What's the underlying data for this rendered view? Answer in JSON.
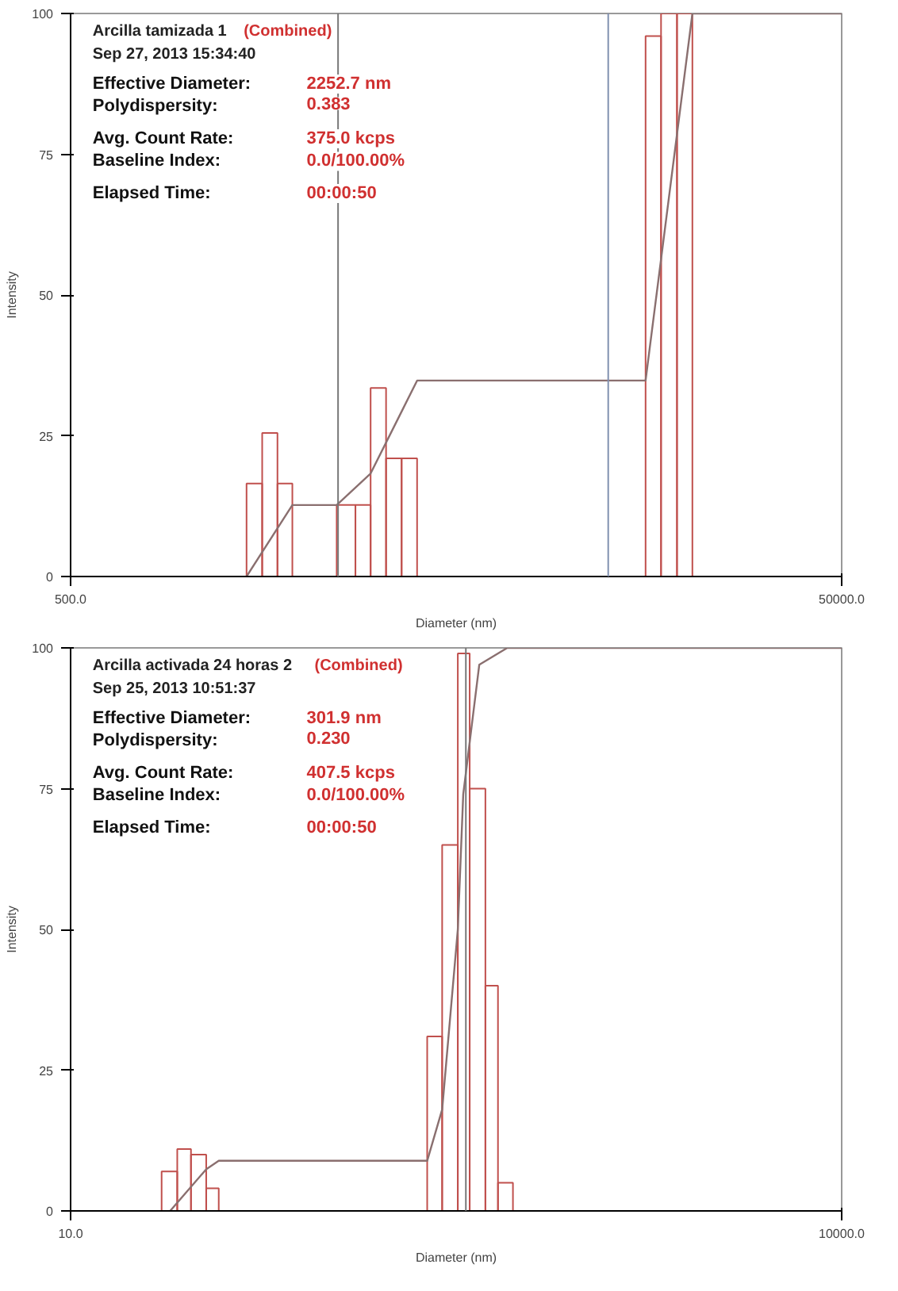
{
  "chart_data": [
    {
      "type": "histogram",
      "xlabel": "Diameter (nm)",
      "ylabel": "Intensity",
      "log": "x",
      "xlim": [
        500,
        50000
      ],
      "xticks": [
        {
          "value": 500,
          "label": "500.0"
        },
        {
          "value": 50000,
          "label": "50000.0"
        }
      ],
      "ylim": [
        0,
        100
      ],
      "yticks": [
        0,
        25,
        50,
        75,
        100
      ],
      "series": [
        {
          "color": "#c0504d",
          "bins": [
            1430,
            1570,
            1720,
            1880,
            2450,
            2740,
            3000,
            3290,
            3610,
            3960,
            15500,
            17000,
            18700,
            20500
          ],
          "values": [
            16.5,
            25.5,
            16.5,
            0,
            12.7,
            12.7,
            33.5,
            21,
            21,
            0,
            96,
            100,
            100
          ]
        },
        {
          "type": "line",
          "color": "#8a6f6f",
          "x": [
            1430,
            1880,
            2450,
            3000,
            3960,
            15500,
            20500,
            50000
          ],
          "values": [
            0,
            12.7,
            12.7,
            18.3,
            34.8,
            34.8,
            100,
            100
          ]
        }
      ],
      "ref_lines": [
        {
          "axis": "x",
          "value": 2470,
          "color": "#777777"
        },
        {
          "axis": "x",
          "value": 12400,
          "color": "#8090b0"
        }
      ],
      "annotations": [
        "Arcilla tamizada 1",
        "(Combined)",
        "Sep 27, 2013   15:34:40",
        "Effective Diameter:",
        "2252.7 nm",
        "Polydispersity:",
        "0.383",
        "Avg. Count Rate:",
        "375.0 kcps",
        "Baseline Index:",
        "0.0/100.00%",
        "Elapsed Time:",
        "00:00:50"
      ]
    },
    {
      "type": "histogram",
      "xlabel": "Diameter (nm)",
      "ylabel": "Intensity",
      "log": "x",
      "xlim": [
        10,
        10000
      ],
      "xticks": [
        {
          "value": 10,
          "label": "10.0"
        },
        {
          "value": 10000,
          "label": "10000.0"
        }
      ],
      "ylim": [
        0,
        100
      ],
      "yticks": [
        0,
        25,
        50,
        75,
        100
      ],
      "series": [
        {
          "color": "#c0504d",
          "bins": [
            22.6,
            26,
            29.4,
            33.7,
            37.7,
            244,
            279,
            321,
            357,
            411,
            460,
            526
          ],
          "values": [
            7,
            11,
            10,
            4,
            0,
            31,
            65,
            99,
            75,
            40,
            5
          ]
        },
        {
          "type": "line",
          "color": "#8a6f6f",
          "x": [
            24.4,
            33.7,
            37.7,
            244,
            279,
            321,
            337,
            389,
            500,
            10000
          ],
          "values": [
            0,
            7.4,
            8.9,
            8.9,
            18,
            50,
            74,
            97,
            100,
            100
          ]
        }
      ],
      "ref_lines": [
        {
          "axis": "x",
          "value": 345,
          "color": "#777777"
        }
      ],
      "annotations": [
        "Arcilla activada 24 horas 2",
        "(Combined)",
        "Sep 25, 2013   10:51:37",
        "Effective Diameter:",
        "301.9 nm",
        "Polydispersity:",
        "0.230",
        "Avg. Count Rate:",
        "407.5 kcps",
        "Baseline Index:",
        "0.0/100.00%",
        "Elapsed Time:",
        "00:00:50"
      ]
    }
  ]
}
